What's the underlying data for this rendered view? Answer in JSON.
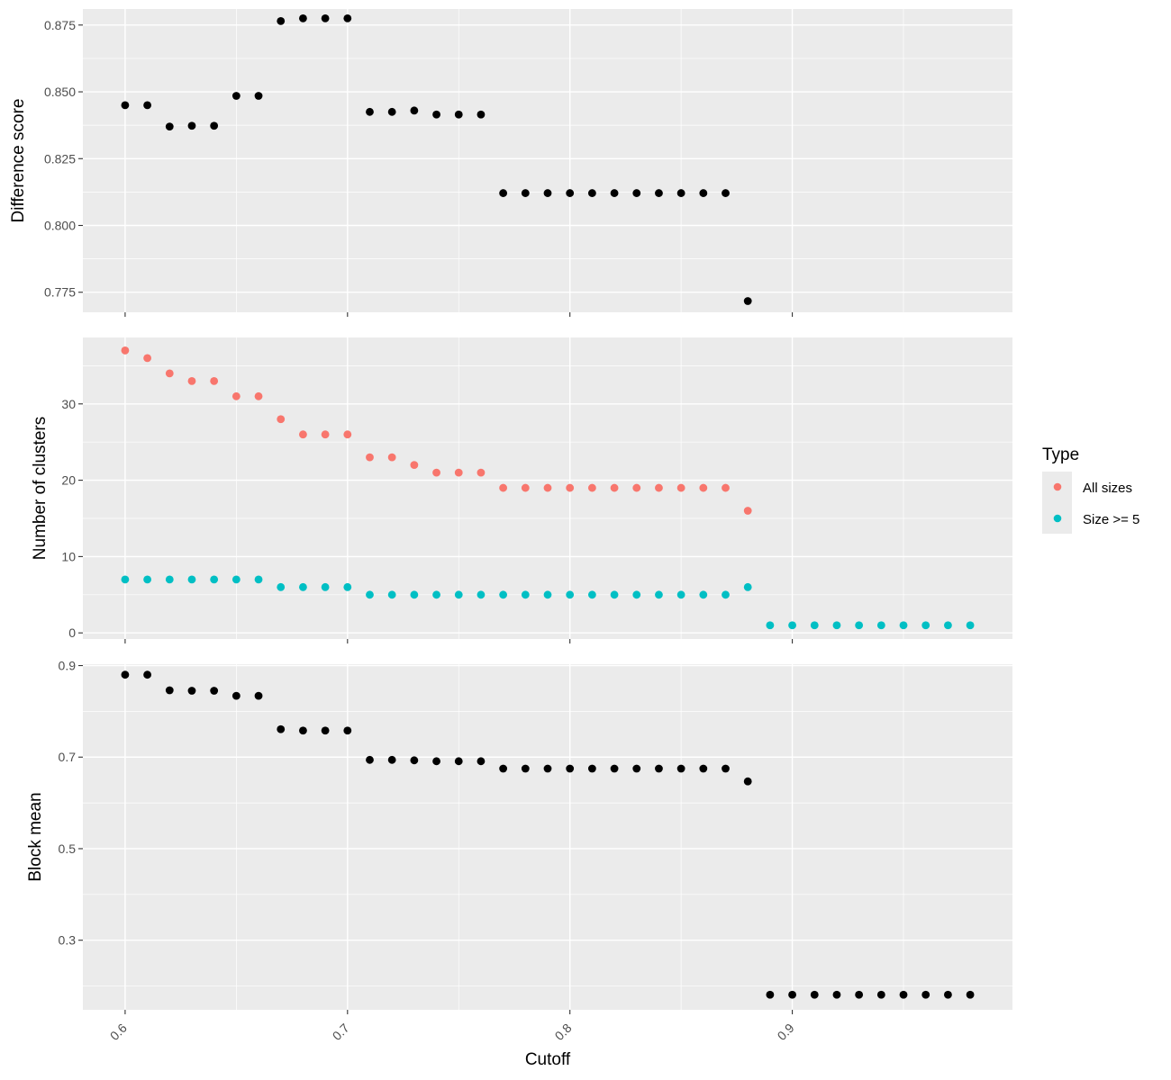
{
  "chart_data": {
    "type": "scatter",
    "xlabel": "Cutoff",
    "x_ticks": [
      "0.6",
      "0.7",
      "0.8",
      "0.9"
    ],
    "x_tick_values": [
      0.6,
      0.7,
      0.8,
      0.9
    ],
    "xlim": [
      0.581,
      0.999
    ],
    "legend": {
      "title": "Type",
      "placement": "right",
      "entries": [
        {
          "label": "All sizes",
          "color": "#F8766D"
        },
        {
          "label": "Size >= 5",
          "color": "#00BFC4"
        }
      ]
    },
    "panels": [
      {
        "ylabel": "Difference score",
        "ylim": [
          0.7675,
          0.881
        ],
        "y_ticks": [
          "0.775",
          "0.800",
          "0.825",
          "0.850",
          "0.875"
        ],
        "y_tick_values": [
          0.775,
          0.8,
          0.825,
          0.85,
          0.875
        ],
        "series": [
          {
            "color": "#000000",
            "x": [
              0.6,
              0.61,
              0.62,
              0.63,
              0.64,
              0.65,
              0.66,
              0.67,
              0.68,
              0.69,
              0.7,
              0.71,
              0.72,
              0.73,
              0.74,
              0.75,
              0.76,
              0.77,
              0.78,
              0.79,
              0.8,
              0.81,
              0.82,
              0.83,
              0.84,
              0.85,
              0.86,
              0.87,
              0.88
            ],
            "y": [
              0.845,
              0.845,
              0.837,
              0.8373,
              0.8373,
              0.8485,
              0.8485,
              0.8765,
              0.8775,
              0.8775,
              0.8775,
              0.8425,
              0.8425,
              0.843,
              0.8415,
              0.8415,
              0.8415,
              0.8121,
              0.8121,
              0.8121,
              0.8121,
              0.8121,
              0.8121,
              0.8121,
              0.8121,
              0.8121,
              0.8121,
              0.8121,
              0.7717
            ]
          }
        ]
      },
      {
        "ylabel": "Number of clusters",
        "ylim": [
          -0.8,
          38.7
        ],
        "y_ticks": [
          "0",
          "10",
          "20",
          "30"
        ],
        "y_tick_values": [
          0,
          10,
          20,
          30
        ],
        "series": [
          {
            "name": "All sizes",
            "color": "#F8766D",
            "x": [
              0.6,
              0.61,
              0.62,
              0.63,
              0.64,
              0.65,
              0.66,
              0.67,
              0.68,
              0.69,
              0.7,
              0.71,
              0.72,
              0.73,
              0.74,
              0.75,
              0.76,
              0.77,
              0.78,
              0.79,
              0.8,
              0.81,
              0.82,
              0.83,
              0.84,
              0.85,
              0.86,
              0.87,
              0.88
            ],
            "y": [
              37,
              36,
              34,
              33,
              33,
              31,
              31,
              28,
              26,
              26,
              26,
              23,
              23,
              22,
              21,
              21,
              21,
              19,
              19,
              19,
              19,
              19,
              19,
              19,
              19,
              19,
              19,
              19,
              16
            ]
          },
          {
            "name": "Size >= 5",
            "color": "#00BFC4",
            "x": [
              0.6,
              0.61,
              0.62,
              0.63,
              0.64,
              0.65,
              0.66,
              0.67,
              0.68,
              0.69,
              0.7,
              0.71,
              0.72,
              0.73,
              0.74,
              0.75,
              0.76,
              0.77,
              0.78,
              0.79,
              0.8,
              0.81,
              0.82,
              0.83,
              0.84,
              0.85,
              0.86,
              0.87,
              0.88,
              0.89,
              0.9,
              0.91,
              0.92,
              0.93,
              0.94,
              0.95,
              0.96,
              0.97,
              0.98
            ],
            "y": [
              7,
              7,
              7,
              7,
              7,
              7,
              7,
              6,
              6,
              6,
              6,
              5,
              5,
              5,
              5,
              5,
              5,
              5,
              5,
              5,
              5,
              5,
              5,
              5,
              5,
              5,
              5,
              5,
              6,
              1,
              1,
              1,
              1,
              1,
              1,
              1,
              1,
              1,
              1
            ]
          }
        ]
      },
      {
        "ylabel": "Block mean",
        "ylim": [
          0.148,
          0.903
        ],
        "y_ticks": [
          "0.3",
          "0.5",
          "0.7",
          "0.9"
        ],
        "y_tick_values": [
          0.3,
          0.5,
          0.7,
          0.9
        ],
        "series": [
          {
            "color": "#000000",
            "x": [
              0.6,
              0.61,
              0.62,
              0.63,
              0.64,
              0.65,
              0.66,
              0.67,
              0.68,
              0.69,
              0.7,
              0.71,
              0.72,
              0.73,
              0.74,
              0.75,
              0.76,
              0.77,
              0.78,
              0.79,
              0.8,
              0.81,
              0.82,
              0.83,
              0.84,
              0.85,
              0.86,
              0.87,
              0.88,
              0.89,
              0.9,
              0.91,
              0.92,
              0.93,
              0.94,
              0.95,
              0.96,
              0.97,
              0.98
            ],
            "y": [
              0.88,
              0.88,
              0.846,
              0.845,
              0.845,
              0.834,
              0.834,
              0.761,
              0.758,
              0.758,
              0.758,
              0.694,
              0.694,
              0.693,
              0.691,
              0.691,
              0.691,
              0.675,
              0.675,
              0.675,
              0.675,
              0.675,
              0.675,
              0.675,
              0.675,
              0.675,
              0.675,
              0.675,
              0.647,
              0.181,
              0.181,
              0.181,
              0.181,
              0.181,
              0.181,
              0.181,
              0.181,
              0.181,
              0.181
            ]
          }
        ]
      }
    ]
  }
}
